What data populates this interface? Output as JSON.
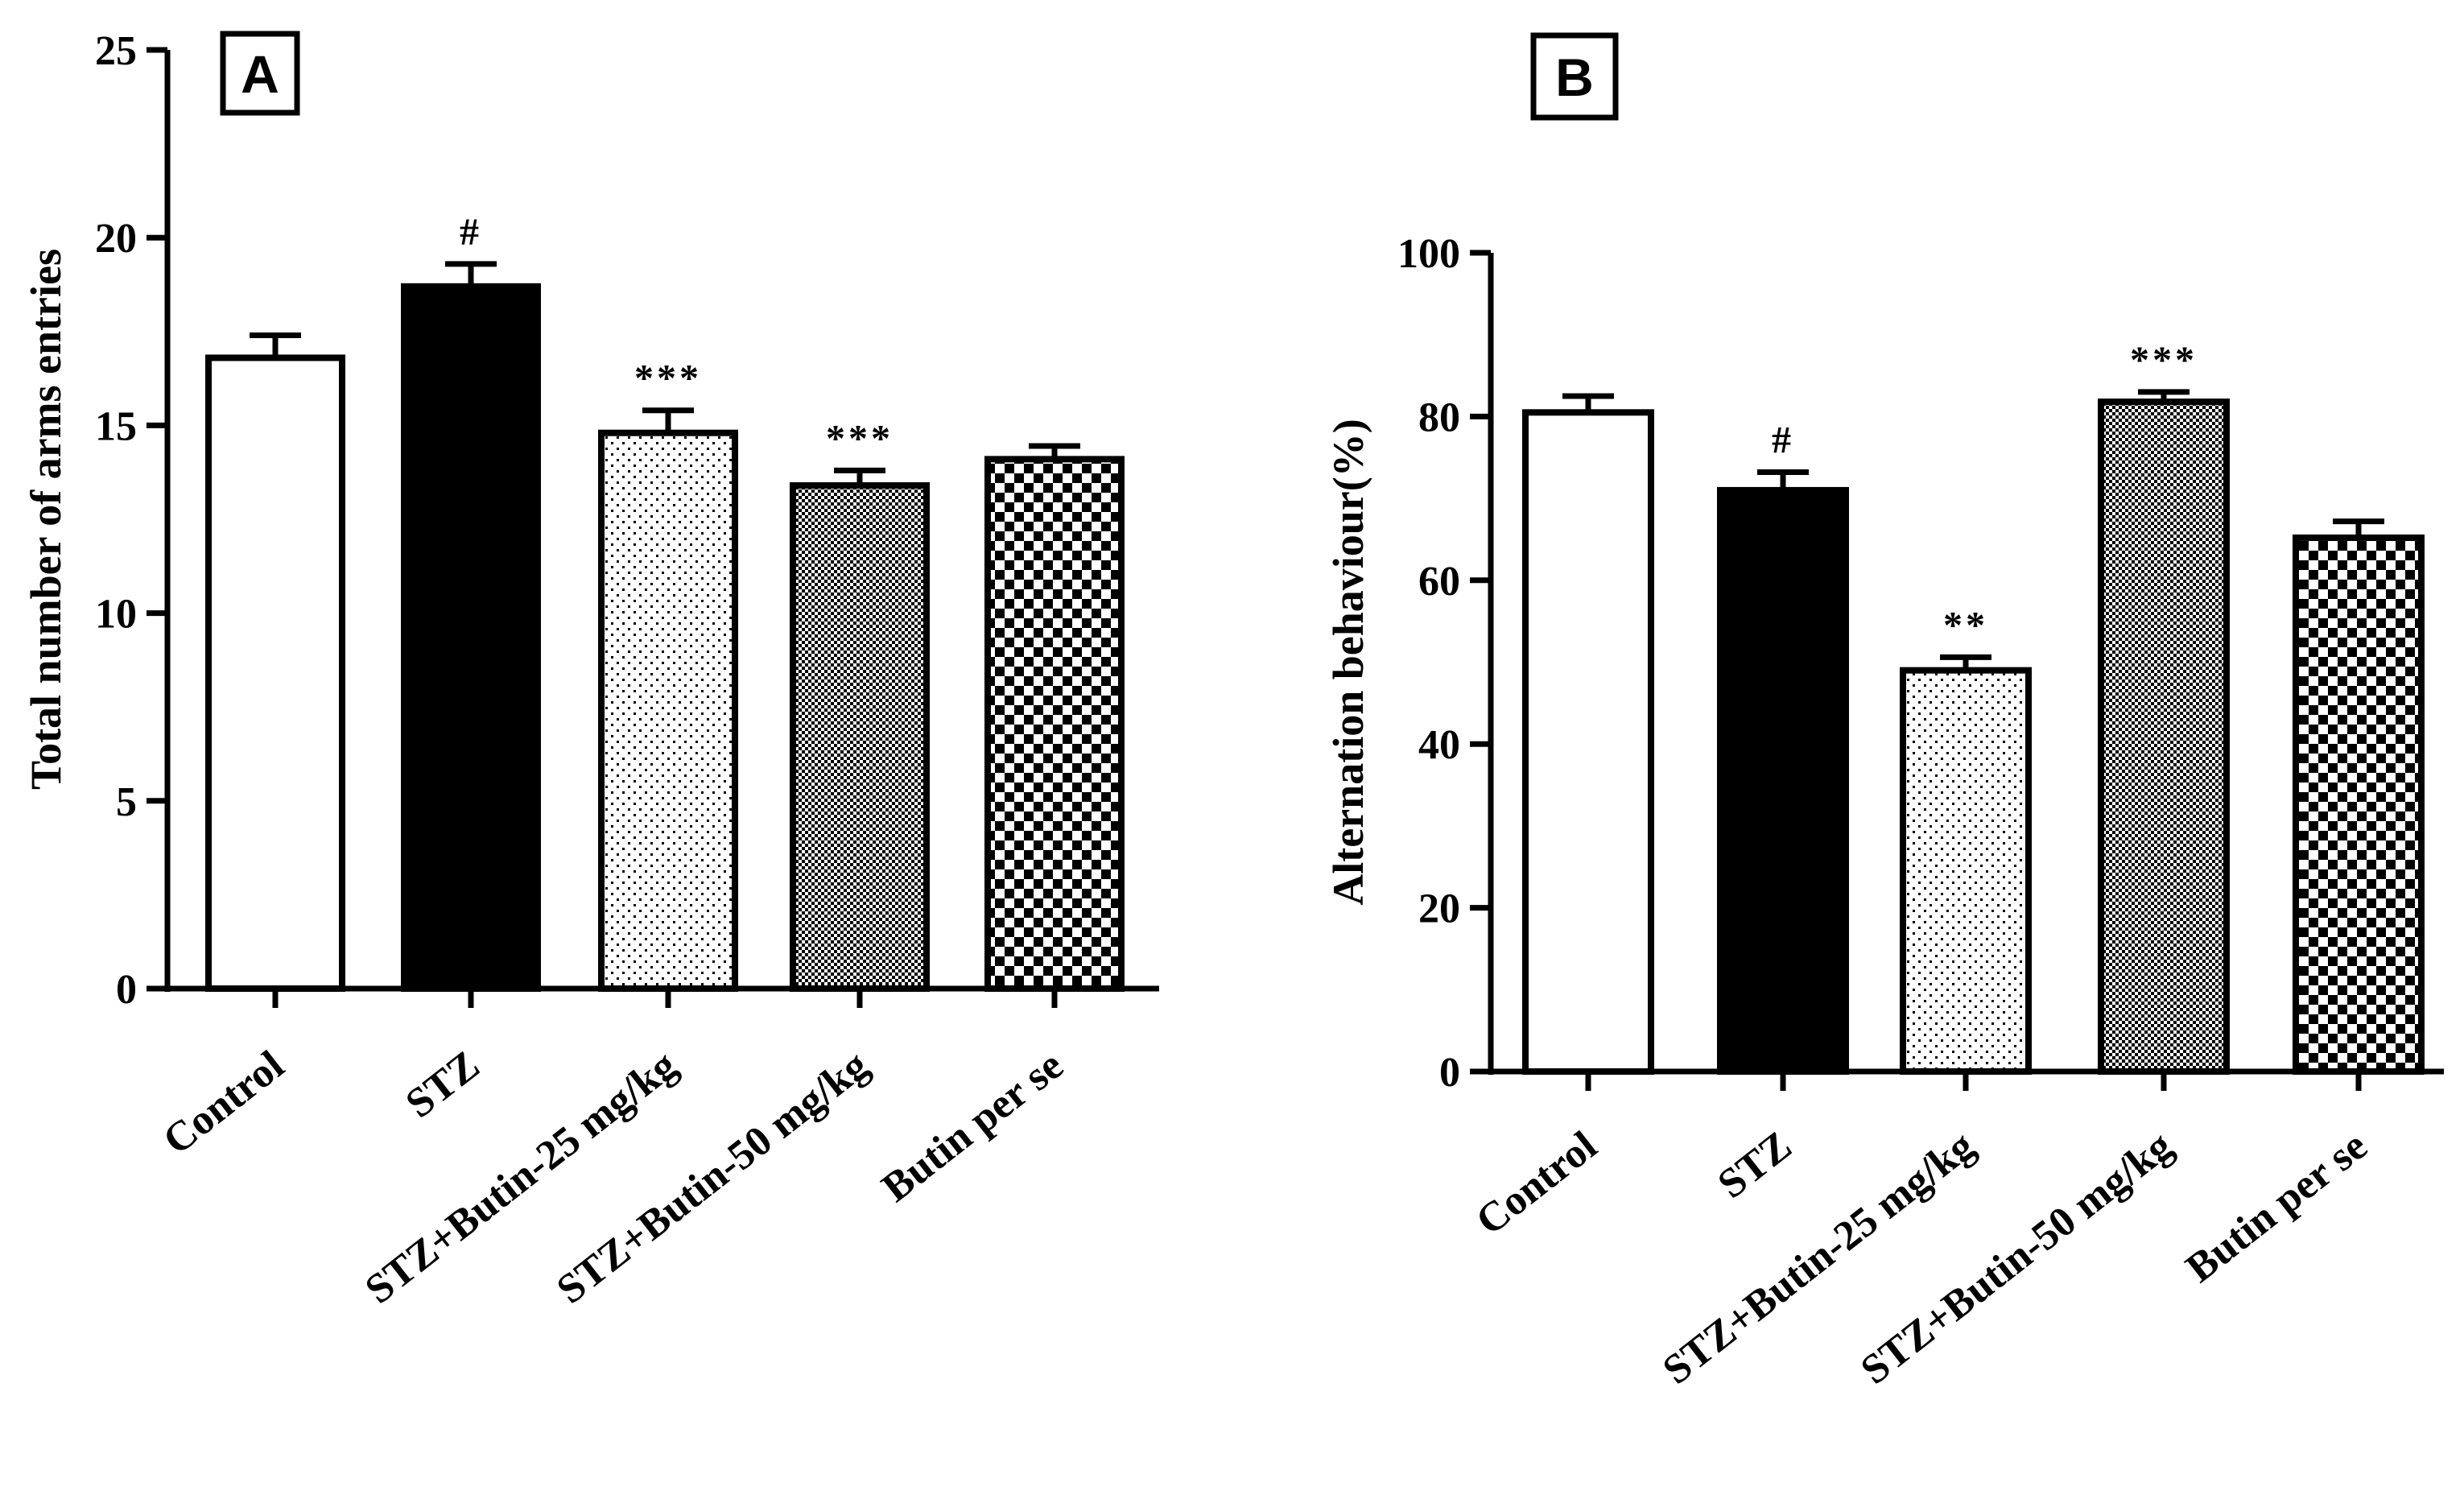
{
  "chart_data": [
    {
      "type": "bar",
      "panel_label": "A",
      "title": "",
      "ylabel": "Total number of arms entries",
      "xlabel": "",
      "ylim": [
        0,
        25
      ],
      "yticks": [
        0,
        5,
        10,
        15,
        20,
        25
      ],
      "categories": [
        "Control",
        "STZ",
        "STZ+Butin-25 mg/kg",
        "STZ+Butin-50 mg/kg",
        "Butin per se"
      ],
      "values": [
        16.8,
        18.7,
        14.8,
        13.4,
        14.1
      ],
      "errors": [
        0.6,
        0.6,
        0.6,
        0.4,
        0.35
      ],
      "patterns": [
        "white",
        "black",
        "dots",
        "fine-checker",
        "checker"
      ],
      "annotations": [
        "",
        "#",
        "***",
        "***",
        ""
      ],
      "grid": false,
      "legend": "none"
    },
    {
      "type": "bar",
      "panel_label": "B",
      "title": "",
      "ylabel": "Alternation behaviour(%)",
      "xlabel": "",
      "ylim": [
        0,
        100
      ],
      "yticks": [
        0,
        20,
        40,
        60,
        80,
        100
      ],
      "categories": [
        "Control",
        "STZ",
        "STZ+Butin-25 mg/kg",
        "STZ+Butin-50 mg/kg",
        "Butin per se"
      ],
      "values": [
        80.5,
        71,
        49,
        81.8,
        65.2
      ],
      "errors": [
        2,
        2.2,
        1.6,
        1.2,
        2
      ],
      "patterns": [
        "white",
        "black",
        "dots",
        "fine-checker",
        "checker"
      ],
      "annotations": [
        "",
        "#",
        "**",
        "***",
        ""
      ],
      "grid": false,
      "legend": "none"
    }
  ]
}
